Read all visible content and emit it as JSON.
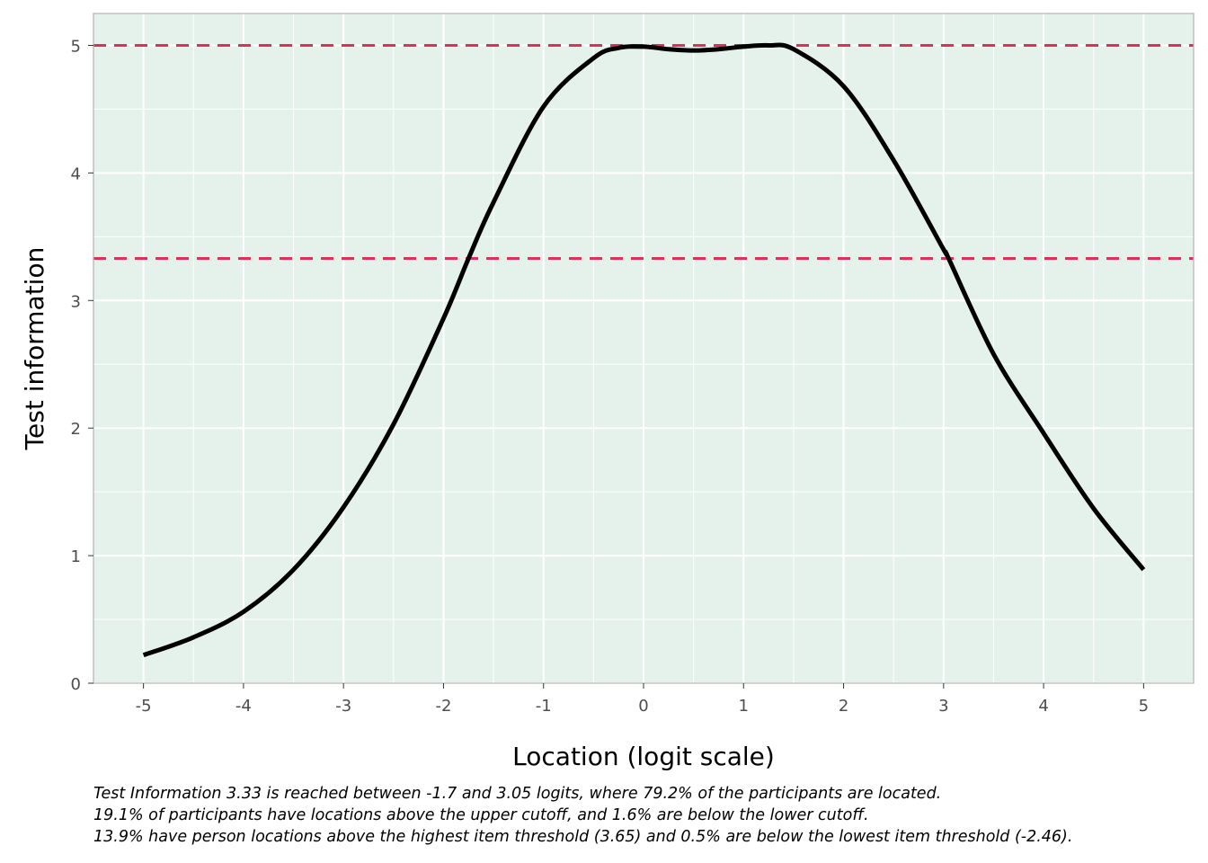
{
  "chart_data": {
    "type": "line",
    "xlabel": "Location (logit scale)",
    "ylabel": "Test information",
    "xlim": [
      -5.5,
      5.5
    ],
    "ylim": [
      0,
      5.25
    ],
    "x_ticks": [
      -5,
      -4,
      -3,
      -2,
      -1,
      0,
      1,
      2,
      3,
      4,
      5
    ],
    "y_ticks": [
      0,
      1,
      2,
      3,
      4,
      5
    ],
    "grid": true,
    "background_color": "#e5f2ec",
    "line_color": "#000000",
    "cutoff_color": "#e0305a",
    "reference_lines": [
      5.0,
      3.33
    ],
    "series": [
      {
        "x": [
          -5,
          -4.5,
          -4,
          -3.5,
          -3,
          -2.5,
          -2,
          -1.75,
          -1.5,
          -1,
          -0.5,
          -0.25,
          0,
          0.25,
          0.5,
          0.75,
          1,
          1.25,
          1.5,
          2,
          2.5,
          3,
          3.05,
          3.5,
          4,
          4.5,
          5
        ],
        "y": [
          0.22,
          0.36,
          0.56,
          0.89,
          1.38,
          2.03,
          2.86,
          3.33,
          3.77,
          4.52,
          4.9,
          4.98,
          4.99,
          4.97,
          4.96,
          4.97,
          4.99,
          5.0,
          4.97,
          4.68,
          4.1,
          3.4,
          3.33,
          2.58,
          1.96,
          1.37,
          0.89
        ]
      }
    ]
  },
  "caption": {
    "line1": "Test Information 3.33 is reached between -1.7 and 3.05 logits, where 79.2% of the participants are located.",
    "line2": "19.1% of participants have locations above the upper cutoff, and 1.6% are below the lower cutoff.",
    "line3": "13.9% have person locations above the highest item threshold (3.65) and 0.5% are below the lowest item threshold (-2.46)."
  }
}
